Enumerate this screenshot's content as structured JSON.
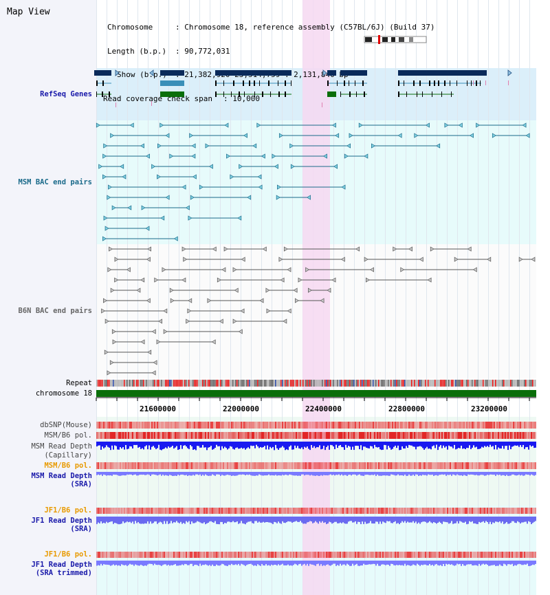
{
  "app": {
    "title": "Map View"
  },
  "info": {
    "chromosome_label": "Chromosome",
    "chromosome_value": ": Chromosome 18, reference assembly (C57BL/6J) (Build 37)",
    "length_label": "Length (b.p.)",
    "length_value": ": 90,772,031",
    "show_label": "Show (b.p.)",
    "show_value": ": 21,382,920-23,514,759 : 2,131,840 bp",
    "coverage_label": "Read coverage check span",
    "coverage_value": ": 10,000"
  },
  "tracks": {
    "refseq": "RefSeq Genes",
    "msm_bac": "MSM BAC end pairs",
    "b6n_bac": "B6N BAC end pairs",
    "repeat": "Repeat",
    "chromosome": "chromosome 18",
    "dbsnp": "dbSNP(Mouse)",
    "msm_b6_pol": "MSM/B6 pol.",
    "msm_read_depth_cap_1": "MSM Read Depth",
    "msm_read_depth_cap_2": "(Capillary)",
    "msm_b6_pol_2": "MSM/B6 pol.",
    "msm_read_depth_sra_1": "MSM Read Depth",
    "msm_read_depth_sra_2": "(SRA)",
    "jf1_b6_pol": "JF1/B6 pol.",
    "jf1_read_depth_1": "JF1 Read Depth",
    "jf1_read_depth_2": "(SRA)",
    "jf1_b6_pol_2": "JF1/B6 pol.",
    "jf1_read_depth_trim_1": "JF1 Read Depth",
    "jf1_read_depth_trim_2": "(SRA trimmed)"
  },
  "axis": {
    "ticks": [
      "21600000",
      "22000000",
      "22400000",
      "22800000",
      "23200000"
    ]
  },
  "colors": {
    "refseq_label": "#1a1aaa",
    "msm_label": "#1a6a8a",
    "b6n_label": "#666666",
    "orange_label": "#e89a00",
    "blue_label": "#1a1aaa",
    "highlight": "#f6d8f1",
    "chromosome_bar": "#0a6e0a",
    "refseq_band": "#dbeffa",
    "bac_band": "#e7fbfb"
  }
}
